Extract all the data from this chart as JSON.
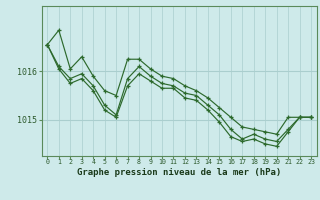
{
  "x": [
    0,
    1,
    2,
    3,
    4,
    5,
    6,
    7,
    8,
    9,
    10,
    11,
    12,
    13,
    14,
    15,
    16,
    17,
    18,
    19,
    20,
    21,
    22,
    23
  ],
  "line1": [
    1016.55,
    1016.85,
    1016.05,
    1016.3,
    1015.9,
    1015.6,
    1015.5,
    1016.25,
    1016.25,
    1016.05,
    1015.9,
    1015.85,
    1015.7,
    1015.6,
    1015.45,
    1015.25,
    1015.05,
    1014.85,
    1014.8,
    1014.75,
    1014.7,
    1015.05,
    1015.05,
    1015.05
  ],
  "line2": [
    1016.55,
    1016.1,
    1015.85,
    1015.95,
    1015.7,
    1015.3,
    1015.1,
    1015.85,
    1016.1,
    1015.9,
    1015.75,
    1015.7,
    1015.55,
    1015.5,
    1015.3,
    1015.1,
    1014.8,
    1014.6,
    1014.7,
    1014.6,
    1014.55,
    1014.8,
    1015.05,
    1015.05
  ],
  "line3": [
    1016.55,
    1016.05,
    1015.75,
    1015.85,
    1015.6,
    1015.2,
    1015.05,
    1015.7,
    1015.95,
    1015.8,
    1015.65,
    1015.65,
    1015.45,
    1015.4,
    1015.2,
    1014.95,
    1014.65,
    1014.55,
    1014.6,
    1014.5,
    1014.45,
    1014.75,
    1015.05,
    1015.05
  ],
  "ylim": [
    1014.25,
    1017.35
  ],
  "yticks": [
    1015,
    1016
  ],
  "xlabel": "Graphe pression niveau de la mer (hPa)",
  "bg_color": "#ceeaea",
  "line_color": "#2d6a2d",
  "grid_color": "#aacece",
  "axis_color": "#5a8a5a",
  "tick_color": "#2d5a2d",
  "xlabel_color": "#1a3a1a"
}
